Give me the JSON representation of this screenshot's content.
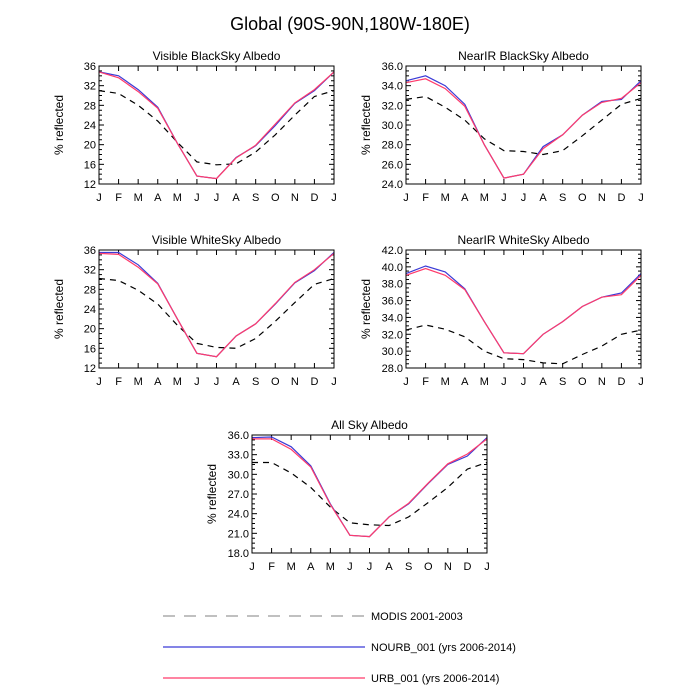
{
  "title": "Global (90S-90N,180W-180E)",
  "legend": [
    {
      "label": "MODIS 2001-2003",
      "color": "#000000",
      "dash": "6,5"
    },
    {
      "label": "NOURB_001 (yrs 2006-2014)",
      "color": "#3b3bd6",
      "dash": ""
    },
    {
      "label": "URB_001 (yrs 2006-2014)",
      "color": "#ff3b6b",
      "dash": ""
    }
  ],
  "chart_data": [
    {
      "type": "line",
      "title": "Visible BlackSky Albedo",
      "ylabel": "% reflected",
      "ylim": [
        12,
        36
      ],
      "yticks": [
        "12",
        "16",
        "20",
        "24",
        "28",
        "32",
        "36"
      ],
      "categories": [
        "J",
        "F",
        "M",
        "A",
        "M",
        "J",
        "J",
        "A",
        "S",
        "O",
        "N",
        "D",
        "J"
      ],
      "series": [
        {
          "name": "MODIS 2001-2003",
          "values": [
            31.0,
            30.4,
            28.0,
            24.8,
            20.5,
            16.5,
            15.9,
            16.1,
            18.5,
            22.0,
            26.0,
            29.8,
            31.0
          ]
        },
        {
          "name": "NOURB_001 (yrs 2006-2014)",
          "values": [
            34.8,
            34.0,
            31.2,
            27.6,
            20.3,
            13.6,
            13.1,
            17.4,
            19.8,
            23.9,
            28.4,
            31.0,
            34.8
          ]
        },
        {
          "name": "URB_001 (yrs 2006-2014)",
          "values": [
            34.8,
            33.6,
            30.8,
            27.4,
            20.3,
            13.6,
            13.1,
            17.3,
            19.9,
            24.2,
            28.5,
            31.2,
            34.8
          ]
        }
      ]
    },
    {
      "type": "line",
      "title": "NearIR BlackSky Albedo",
      "ylabel": "% reflected",
      "ylim": [
        24,
        36
      ],
      "yticks": [
        "24.0",
        "26.0",
        "28.0",
        "30.0",
        "32.0",
        "34.0",
        "36.0"
      ],
      "categories": [
        "J",
        "F",
        "M",
        "A",
        "M",
        "J",
        "J",
        "A",
        "S",
        "O",
        "N",
        "D",
        "J"
      ],
      "series": [
        {
          "name": "MODIS 2001-2003",
          "values": [
            32.6,
            32.9,
            31.8,
            30.5,
            28.6,
            27.4,
            27.3,
            27.0,
            27.4,
            28.9,
            30.5,
            32.1,
            32.7
          ]
        },
        {
          "name": "NOURB_001 (yrs 2006-2014)",
          "values": [
            34.5,
            35.0,
            34.0,
            32.1,
            28.0,
            24.6,
            25.0,
            27.8,
            29.0,
            31.0,
            32.4,
            32.6,
            34.5
          ]
        },
        {
          "name": "URB_001 (yrs 2006-2014)",
          "values": [
            34.3,
            34.7,
            33.7,
            31.9,
            28.0,
            24.6,
            25.0,
            27.6,
            29.0,
            31.0,
            32.3,
            32.7,
            34.3
          ]
        }
      ]
    },
    {
      "type": "line",
      "title": "Visible WhiteSky Albedo",
      "ylabel": "% reflected",
      "ylim": [
        12,
        36
      ],
      "yticks": [
        "12",
        "16",
        "20",
        "24",
        "28",
        "32",
        "36"
      ],
      "categories": [
        "J",
        "F",
        "M",
        "A",
        "M",
        "J",
        "J",
        "A",
        "S",
        "O",
        "N",
        "D",
        "J"
      ],
      "series": [
        {
          "name": "MODIS 2001-2003",
          "values": [
            30.2,
            29.8,
            27.8,
            25.0,
            20.7,
            17.0,
            16.2,
            16.0,
            18.0,
            21.5,
            25.3,
            29.0,
            30.2
          ]
        },
        {
          "name": "NOURB_001 (yrs 2006-2014)",
          "values": [
            35.5,
            35.5,
            33.0,
            29.2,
            22.0,
            15.0,
            14.3,
            18.5,
            21.0,
            25.0,
            29.3,
            31.8,
            35.5
          ]
        },
        {
          "name": "URB_001 (yrs 2006-2014)",
          "values": [
            35.3,
            35.1,
            32.5,
            29.1,
            22.0,
            15.0,
            14.3,
            18.5,
            21.0,
            25.1,
            29.4,
            32.0,
            35.3
          ]
        }
      ]
    },
    {
      "type": "line",
      "title": "NearIR WhiteSky Albedo",
      "ylabel": "% reflected",
      "ylim": [
        28,
        42
      ],
      "yticks": [
        "28.0",
        "30.0",
        "32.0",
        "34.0",
        "36.0",
        "38.0",
        "40.0",
        "42.0"
      ],
      "categories": [
        "J",
        "F",
        "M",
        "A",
        "M",
        "J",
        "J",
        "A",
        "S",
        "O",
        "N",
        "D",
        "J"
      ],
      "series": [
        {
          "name": "MODIS 2001-2003",
          "values": [
            32.5,
            33.1,
            32.6,
            31.7,
            30.0,
            29.1,
            29.0,
            28.6,
            28.5,
            29.6,
            30.6,
            32.0,
            32.5
          ]
        },
        {
          "name": "NOURB_001 (yrs 2006-2014)",
          "values": [
            39.2,
            40.1,
            39.4,
            37.4,
            33.5,
            29.8,
            29.7,
            32.0,
            33.5,
            35.3,
            36.4,
            36.9,
            39.2
          ]
        },
        {
          "name": "URB_001 (yrs 2006-2014)",
          "values": [
            39.0,
            39.8,
            39.0,
            37.3,
            33.5,
            29.8,
            29.7,
            32.0,
            33.5,
            35.3,
            36.4,
            36.7,
            39.0
          ]
        }
      ]
    },
    {
      "type": "line",
      "title": "All Sky Albedo",
      "ylabel": "% reflected",
      "ylim": [
        18,
        36
      ],
      "yticks": [
        "18.0",
        "21.0",
        "24.0",
        "27.0",
        "30.0",
        "33.0",
        "36.0"
      ],
      "categories": [
        "J",
        "F",
        "M",
        "A",
        "M",
        "J",
        "J",
        "A",
        "S",
        "O",
        "N",
        "D",
        "J"
      ],
      "series": [
        {
          "name": "MODIS 2001-2003",
          "values": [
            31.8,
            31.8,
            30.2,
            28.0,
            25.0,
            22.6,
            22.3,
            22.2,
            23.5,
            25.7,
            28.0,
            30.8,
            31.8
          ]
        },
        {
          "name": "NOURB_001 (yrs 2006-2014)",
          "values": [
            35.6,
            35.7,
            34.2,
            31.3,
            25.5,
            20.7,
            20.5,
            23.5,
            25.5,
            28.6,
            31.5,
            32.8,
            35.6
          ]
        },
        {
          "name": "URB_001 (yrs 2006-2014)",
          "values": [
            35.4,
            35.4,
            33.8,
            31.1,
            25.4,
            20.7,
            20.5,
            23.5,
            25.6,
            28.7,
            31.6,
            33.1,
            35.4
          ]
        }
      ]
    }
  ]
}
